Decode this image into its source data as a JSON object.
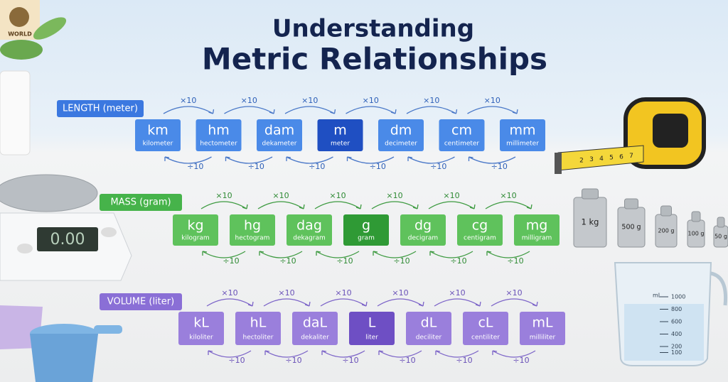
{
  "title": {
    "line1": "Understanding",
    "line2": "Metric Relationships"
  },
  "logo": "WORLD",
  "rows": [
    {
      "label": "LENGTH (meter)",
      "units": [
        {
          "symbol": "km",
          "name": "kilometer"
        },
        {
          "symbol": "hm",
          "name": "hectometer"
        },
        {
          "symbol": "dam",
          "name": "dekameter"
        },
        {
          "symbol": "m",
          "name": "meter"
        },
        {
          "symbol": "dm",
          "name": "decimeter"
        },
        {
          "symbol": "cm",
          "name": "centimeter"
        },
        {
          "symbol": "mm",
          "name": "millimeter"
        }
      ],
      "up": [
        "×10",
        "×10",
        "×10",
        "×10",
        "×10",
        "×10"
      ],
      "down": [
        "÷10",
        "÷10",
        "÷10",
        "÷10",
        "÷10",
        "÷10"
      ]
    },
    {
      "label": "MASS (gram)",
      "units": [
        {
          "symbol": "kg",
          "name": "kilogram"
        },
        {
          "symbol": "hg",
          "name": "hectogram"
        },
        {
          "symbol": "dag",
          "name": "dekagram"
        },
        {
          "symbol": "g",
          "name": "gram"
        },
        {
          "symbol": "dg",
          "name": "decigram"
        },
        {
          "symbol": "cg",
          "name": "centigram"
        },
        {
          "symbol": "mg",
          "name": "milligram"
        }
      ],
      "up": [
        "×10",
        "×10",
        "×10",
        "×10",
        "×10",
        "×10"
      ],
      "down": [
        "÷10",
        "÷10",
        "÷10",
        "÷10",
        "÷10",
        "÷10"
      ]
    },
    {
      "label": "VOLUME (liter)",
      "units": [
        {
          "symbol": "kL",
          "name": "kiloliter"
        },
        {
          "symbol": "hL",
          "name": "hectoliter"
        },
        {
          "symbol": "daL",
          "name": "dekaliter"
        },
        {
          "symbol": "L",
          "name": "liter"
        },
        {
          "symbol": "dL",
          "name": "deciliter"
        },
        {
          "symbol": "cL",
          "name": "centiliter"
        },
        {
          "symbol": "mL",
          "name": "milliliter"
        }
      ],
      "up": [
        "×10",
        "×10",
        "×10",
        "×10",
        "×10",
        "×10"
      ],
      "down": [
        "÷10",
        "÷10",
        "÷10",
        "÷10",
        "÷10",
        "÷10"
      ]
    }
  ],
  "scale_display": "0.00",
  "tape": [
    "2",
    "3",
    "4",
    "5",
    "6",
    "7"
  ],
  "weights": [
    "1 kg",
    "500 g",
    "200 g",
    "100 g",
    "50 g"
  ],
  "cup": {
    "unit": "mL",
    "marks": [
      "1000",
      "800",
      "600",
      "400",
      "200",
      "100"
    ]
  }
}
